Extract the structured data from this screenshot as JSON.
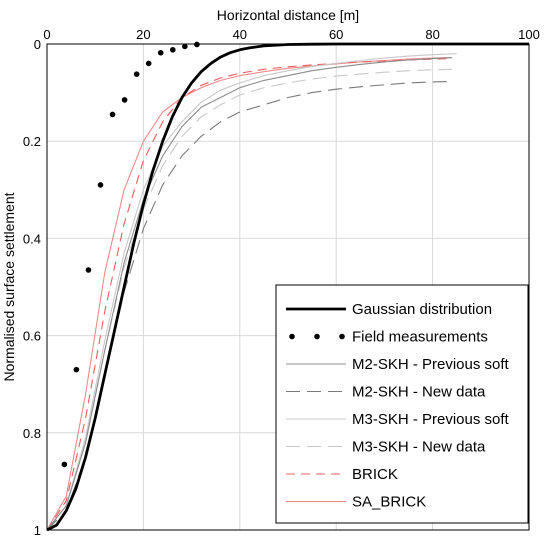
{
  "chart_data": {
    "type": "line",
    "xlabel": "Horizontal distance [m]",
    "ylabel": "Normalised surface settlement",
    "xlim": [
      0,
      100
    ],
    "ylim": [
      0,
      1
    ],
    "y_inverted": true,
    "x_axis_position": "top",
    "x_ticks": [
      0,
      20,
      40,
      60,
      80,
      100
    ],
    "y_ticks": [
      0,
      0.2,
      0.4,
      0.6,
      0.8,
      1
    ],
    "x_tick_labels": [
      "0",
      "20",
      "40",
      "60",
      "80",
      "100"
    ],
    "y_tick_labels": [
      "0",
      "0.2",
      "0.4",
      "0.6",
      "0.8",
      "1"
    ],
    "grid": true,
    "legend_position": "bottom-right",
    "series": [
      {
        "name": "Gaussian distribution",
        "color": "#000000",
        "style": "solid-thick",
        "x": [
          0,
          2,
          4,
          6,
          8,
          10,
          12,
          14,
          16,
          18,
          20,
          22,
          24,
          26,
          28,
          30,
          32,
          34,
          36,
          38,
          40,
          42,
          45,
          50,
          55,
          60,
          70,
          80,
          90,
          100
        ],
        "y": [
          1,
          0.99,
          0.96,
          0.915,
          0.85,
          0.77,
          0.68,
          0.59,
          0.5,
          0.41,
          0.33,
          0.26,
          0.2,
          0.15,
          0.11,
          0.08,
          0.057,
          0.04,
          0.027,
          0.018,
          0.012,
          0.008,
          0.004,
          0.001,
          0.0004,
          0,
          0,
          0,
          0,
          0
        ]
      },
      {
        "name": "Field measurements",
        "color": "#000000",
        "style": "markers",
        "x": [
          3.6,
          6.1,
          8.6,
          11.1,
          13.6,
          16.1,
          18.6,
          21.1,
          23.6,
          26.1,
          28.6,
          31.1
        ],
        "y": [
          0.865,
          0.67,
          0.465,
          0.29,
          0.145,
          0.115,
          0.062,
          0.04,
          0.018,
          0.012,
          0.005,
          0.001
        ]
      },
      {
        "name": "M2-SKH - Previous soft",
        "color": "#8c8c8c",
        "style": "solid",
        "x": [
          0,
          4,
          8,
          12,
          16,
          20,
          24,
          28,
          32,
          36,
          40,
          45,
          50,
          55,
          60,
          65,
          70,
          75,
          80,
          84
        ],
        "y": [
          1,
          0.95,
          0.82,
          0.63,
          0.45,
          0.32,
          0.23,
          0.17,
          0.13,
          0.11,
          0.09,
          0.075,
          0.065,
          0.055,
          0.048,
          0.042,
          0.037,
          0.033,
          0.03,
          0.028
        ]
      },
      {
        "name": "M2-SKH - New data",
        "color": "#7a7a7a",
        "style": "long-dash",
        "x": [
          0,
          4,
          8,
          12,
          16,
          20,
          24,
          28,
          32,
          36,
          40,
          45,
          50,
          55,
          60,
          65,
          70,
          75,
          80,
          84
        ],
        "y": [
          1,
          0.96,
          0.85,
          0.68,
          0.51,
          0.38,
          0.29,
          0.23,
          0.19,
          0.16,
          0.14,
          0.125,
          0.11,
          0.1,
          0.093,
          0.088,
          0.084,
          0.08,
          0.078,
          0.077
        ]
      },
      {
        "name": "M3-SKH - Previous soft",
        "color": "#c8c8c8",
        "style": "solid",
        "x": [
          0,
          4,
          8,
          12,
          16,
          20,
          24,
          28,
          32,
          36,
          40,
          45,
          50,
          55,
          60,
          65,
          70,
          75,
          80,
          85
        ],
        "y": [
          1,
          0.95,
          0.81,
          0.61,
          0.43,
          0.3,
          0.21,
          0.16,
          0.12,
          0.095,
          0.08,
          0.065,
          0.055,
          0.046,
          0.04,
          0.034,
          0.029,
          0.025,
          0.022,
          0.02
        ]
      },
      {
        "name": "M3-SKH - New data",
        "color": "#c8c8c8",
        "style": "long-dash",
        "x": [
          0,
          4,
          8,
          12,
          16,
          20,
          24,
          28,
          32,
          36,
          40,
          45,
          50,
          55,
          60,
          65,
          70,
          75,
          80,
          84
        ],
        "y": [
          1,
          0.95,
          0.82,
          0.63,
          0.46,
          0.34,
          0.25,
          0.19,
          0.15,
          0.125,
          0.105,
          0.09,
          0.08,
          0.072,
          0.066,
          0.062,
          0.058,
          0.055,
          0.053,
          0.052
        ]
      },
      {
        "name": "BRICK",
        "color": "#ef5d5d",
        "style": "dash",
        "x": [
          0,
          4,
          8,
          12,
          16,
          20,
          24,
          28,
          32,
          36,
          40,
          45,
          50,
          55,
          60,
          65,
          70,
          75,
          80,
          84
        ],
        "y": [
          1,
          0.94,
          0.77,
          0.55,
          0.37,
          0.24,
          0.16,
          0.11,
          0.085,
          0.07,
          0.06,
          0.052,
          0.047,
          0.043,
          0.04,
          0.037,
          0.035,
          0.033,
          0.031,
          0.03
        ]
      },
      {
        "name": "SA_BRICK",
        "color": "#f08a8a",
        "style": "solid",
        "x": [
          0,
          4,
          8,
          12,
          16,
          20,
          24,
          28,
          32,
          36,
          40,
          45,
          50,
          55,
          60,
          65,
          70,
          75,
          80,
          84
        ],
        "y": [
          1,
          0.93,
          0.72,
          0.47,
          0.3,
          0.2,
          0.14,
          0.11,
          0.09,
          0.075,
          0.065,
          0.057,
          0.05,
          0.045,
          0.041,
          0.037,
          0.034,
          0.031,
          0.029,
          0.028
        ]
      }
    ]
  }
}
